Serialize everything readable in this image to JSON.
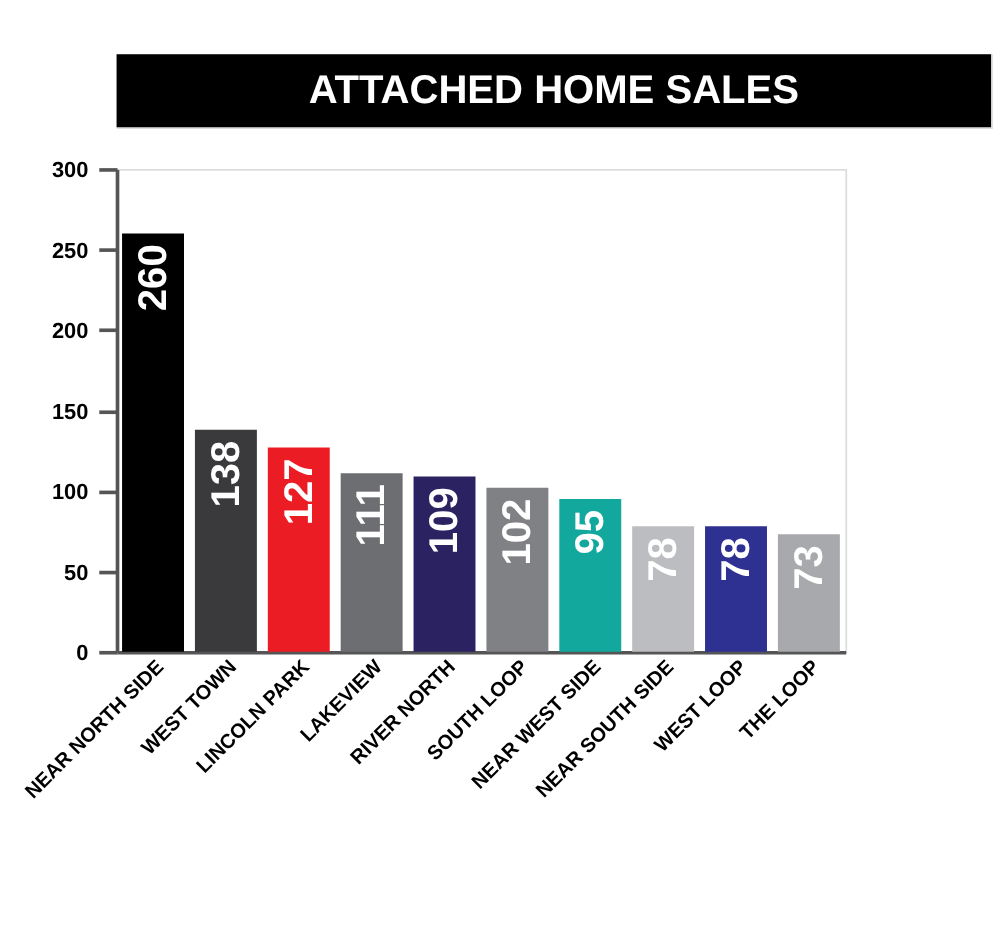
{
  "chart_data": {
    "type": "bar",
    "title": "ATTACHED HOME SALES",
    "categories": [
      "NEAR NORTH SIDE",
      "WEST TOWN",
      "LINCOLN PARK",
      "LAKEVIEW",
      "RIVER NORTH",
      "SOUTH LOOP",
      "NEAR WEST SIDE",
      "NEAR SOUTH SIDE",
      "WEST LOOP",
      "THE LOOP"
    ],
    "values": [
      260,
      138,
      127,
      111,
      109,
      102,
      95,
      78,
      78,
      73
    ],
    "colors": [
      "#000000",
      "#3a3a3c",
      "#ec1c24",
      "#6d6e71",
      "#2a2261",
      "#808184",
      "#13a89e",
      "#bcbdc0",
      "#2e3192",
      "#a7a9ac"
    ],
    "ylim": [
      0,
      300
    ],
    "yticks": [
      0,
      50,
      100,
      150,
      200,
      250,
      300
    ],
    "grid": false,
    "data_labels": true
  }
}
